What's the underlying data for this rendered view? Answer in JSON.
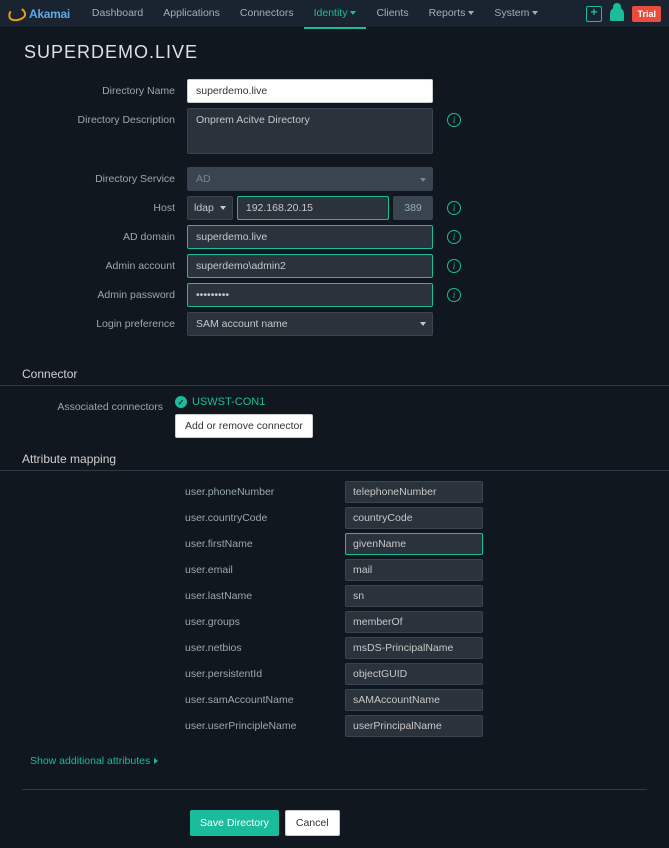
{
  "brand": "Akamai",
  "nav": {
    "items": [
      {
        "label": "Dashboard",
        "dropdown": false
      },
      {
        "label": "Applications",
        "dropdown": false
      },
      {
        "label": "Connectors",
        "dropdown": false
      },
      {
        "label": "Identity",
        "dropdown": true,
        "active": true
      },
      {
        "label": "Clients",
        "dropdown": false
      },
      {
        "label": "Reports",
        "dropdown": true
      },
      {
        "label": "System",
        "dropdown": true
      }
    ],
    "trial": "Trial"
  },
  "page_title": "SUPERDEMO.LIVE",
  "directory": {
    "labels": {
      "name": "Directory Name",
      "description": "Directory Description",
      "service": "Directory Service",
      "host": "Host",
      "ad_domain": "AD domain",
      "admin_account": "Admin account",
      "admin_password": "Admin password",
      "login_pref": "Login preference"
    },
    "name": "superdemo.live",
    "description": "Onprem Acitve Directory",
    "service": "AD",
    "host_proto": "ldap",
    "host_addr": "192.168.20.15",
    "host_port": "389",
    "ad_domain": "superdemo.live",
    "admin_account": "superdemo\\admin2",
    "admin_password": "•••••••••",
    "login_pref": "SAM account name"
  },
  "connector": {
    "heading": "Connector",
    "row_label": "Associated connectors",
    "name": "USWST-CON1",
    "button": "Add or remove connector"
  },
  "attrmap": {
    "heading": "Attribute mapping",
    "rows": [
      {
        "key": "user.phoneNumber",
        "val": "telephoneNumber"
      },
      {
        "key": "user.countryCode",
        "val": "countryCode"
      },
      {
        "key": "user.firstName",
        "val": "givenName",
        "hl": true
      },
      {
        "key": "user.email",
        "val": "mail"
      },
      {
        "key": "user.lastName",
        "val": "sn"
      },
      {
        "key": "user.groups",
        "val": "memberOf"
      },
      {
        "key": "user.netbios",
        "val": "msDS-PrincipalName"
      },
      {
        "key": "user.persistentId",
        "val": "objectGUID"
      },
      {
        "key": "user.samAccountName",
        "val": "sAMAccountName"
      },
      {
        "key": "user.userPrincipleName",
        "val": "userPrincipalName"
      }
    ],
    "show_more": "Show additional attributes"
  },
  "footer": {
    "save": "Save Directory",
    "cancel": "Cancel"
  },
  "colors": {
    "accent": "#1abc9c",
    "bg": "#11171f",
    "panel": "#2a323c",
    "danger": "#e74c3c"
  }
}
